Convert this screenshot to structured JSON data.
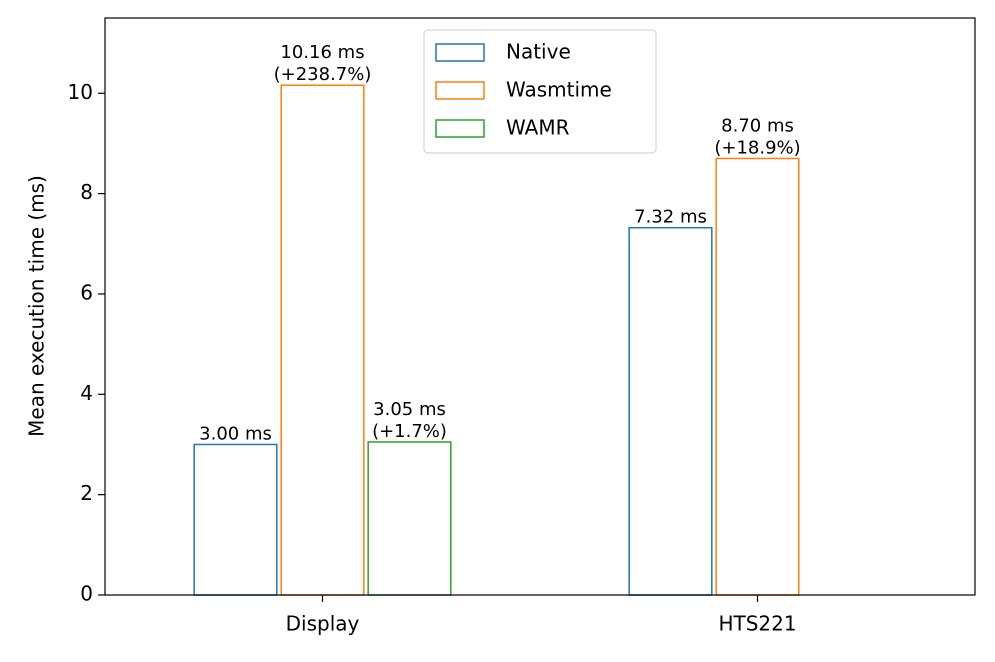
{
  "chart_data": {
    "type": "bar",
    "y_label": "Mean execution time (ms)",
    "categories": [
      "Display",
      "HTS221"
    ],
    "series": [
      {
        "name": "Native",
        "color": "#1f77b4",
        "values": [
          3.0,
          7.32
        ],
        "value_labels": [
          [
            "3.00 ms"
          ],
          [
            "7.32 ms"
          ]
        ]
      },
      {
        "name": "Wasmtime",
        "color": "#ff7f0e",
        "values": [
          10.16,
          8.7
        ],
        "value_labels": [
          [
            "10.16 ms",
            "(+238.7%)"
          ],
          [
            "8.70 ms",
            "(+18.9%)"
          ]
        ]
      },
      {
        "name": "WAMR",
        "color": "#2ca02c",
        "values": [
          3.05,
          null
        ],
        "value_labels": [
          [
            "3.05 ms",
            "(+1.7%)"
          ],
          null
        ]
      }
    ],
    "ylim": [
      0,
      11.5
    ],
    "yticks": [
      0,
      2,
      4,
      6,
      8,
      10
    ],
    "grid": false,
    "legend": "upper center"
  }
}
